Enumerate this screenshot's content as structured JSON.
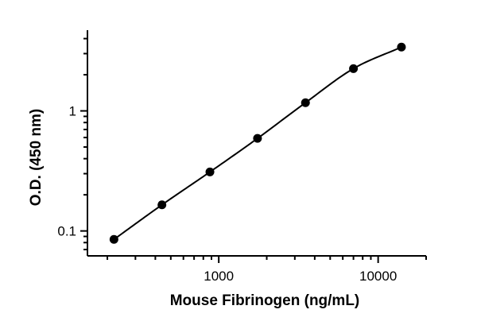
{
  "chart_data": {
    "type": "scatter",
    "xlabel": "Mouse Fibrinogen (ng/mL)",
    "ylabel": "O.D. (450 nm)",
    "x_scale": "log",
    "y_scale": "log",
    "xlim": [
      150,
      20000
    ],
    "ylim": [
      0.062,
      4.7
    ],
    "x_tick_labels": [
      "1000",
      "10000"
    ],
    "y_tick_labels": [
      "0.1",
      "1"
    ],
    "grid": false,
    "legend": "none",
    "colors": {
      "marker": "#000000",
      "line": "#000000"
    },
    "series": [
      {
        "x": [
          220,
          440,
          880,
          1750,
          3500,
          7000,
          14000
        ],
        "y": [
          0.085,
          0.165,
          0.31,
          0.59,
          1.17,
          2.25,
          3.4
        ]
      }
    ]
  }
}
